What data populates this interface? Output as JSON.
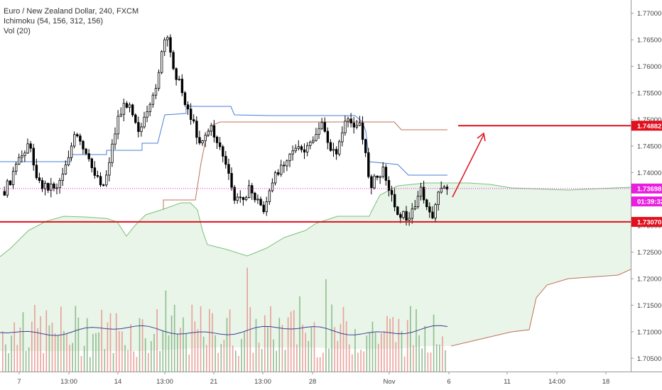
{
  "legend": {
    "symbol": "Euro / New Zealand Dollar, 240, FXCM",
    "indicator1": "Ichimoku (54, 156, 312, 156)",
    "indicator2": "Vol (20)"
  },
  "chart_data": {
    "type": "candlestick",
    "title": "Euro / New Zealand Dollar, 240, FXCM",
    "ylim": [
      1.7025,
      1.7725
    ],
    "y_ticks": [
      "1.77000",
      "1.76500",
      "1.76000",
      "1.75500",
      "1.75000",
      "1.74500",
      "1.74000",
      "1.73500",
      "1.73000",
      "1.72500",
      "1.72000",
      "1.71500",
      "1.71000",
      "1.70500"
    ],
    "x_ticks": [
      "7",
      "13:00",
      "14",
      "13:00",
      "21",
      "13:00",
      "28",
      "Nov",
      "6",
      "11",
      "14:00",
      "18"
    ],
    "price_tags": [
      {
        "label": "1.74882",
        "value": 1.74882,
        "color": "#e0101e"
      },
      {
        "label": "1.73698",
        "value": 1.73698,
        "color": "#e91ee0"
      },
      {
        "label": "01:39:32",
        "value": 1.73455,
        "color": "#e91ee0"
      },
      {
        "label": "1.73070",
        "value": 1.7307,
        "color": "#e0101e"
      }
    ],
    "horizontal_lines": [
      {
        "name": "resistance",
        "value": 1.74882,
        "color": "#e0101e"
      },
      {
        "name": "support",
        "value": 1.7307,
        "color": "#e0101e"
      },
      {
        "name": "last-price",
        "value": 1.73698,
        "color": "#e91ee0",
        "dotted": true
      }
    ],
    "colors": {
      "up": "#ffffff",
      "down": "#000000",
      "wick": "#000000",
      "kijun": "#4a7fd6",
      "span_b": "#c0705a",
      "cloud": "#e8f5e8",
      "cloud_edge": "#7cc07c",
      "vol_up": "#7fb27f",
      "vol_down": "#e7918a",
      "vol_ma": "#3f3f8f",
      "arrow": "#e0101e"
    }
  }
}
